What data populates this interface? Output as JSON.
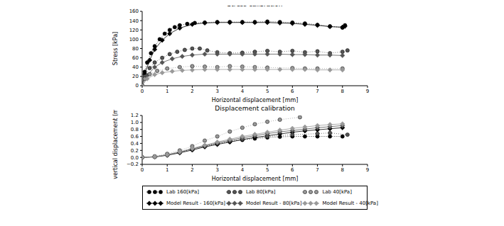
{
  "chart_data": [
    {
      "type": "line",
      "title": "Stress calibration",
      "x_label": "Horizontal displacement [mm]",
      "y_label": "Stress [kPa]",
      "xlim": [
        0,
        9
      ],
      "xticks": [
        0,
        1,
        2,
        3,
        4,
        5,
        6,
        7,
        8,
        9
      ],
      "ylim": [
        0,
        160
      ],
      "yticks": [
        0,
        20,
        40,
        60,
        80,
        100,
        120,
        140,
        160
      ],
      "grid": false,
      "legend": "bottom",
      "series": [
        {
          "name": "Lab 160[kPa]",
          "color": "#000000",
          "marker": "circle",
          "line_style": "dotted",
          "x": [
            0,
            0.1,
            0.2,
            0.35,
            0.5,
            0.7,
            0.9,
            1.1,
            1.3,
            1.5,
            1.8,
            2.1,
            2.5,
            3,
            3.5,
            4,
            4.5,
            5,
            5.5,
            6,
            6.5,
            7,
            7.5,
            8,
            8.1
          ],
          "values": [
            0,
            30,
            50,
            70,
            85,
            100,
            112,
            120,
            126,
            130,
            133,
            135,
            136,
            137,
            137,
            137,
            137,
            138,
            137,
            136,
            134,
            131,
            128,
            125,
            130
          ]
        },
        {
          "name": "Model Result - 160[kPa]",
          "color": "#000000",
          "marker": "diamond",
          "line_style": "solid",
          "x": [
            0,
            0.1,
            0.3,
            0.5,
            0.8,
            1.1,
            1.5,
            2,
            2.5,
            3,
            3.5,
            4,
            4.5,
            5,
            5.5,
            6,
            6.5,
            7,
            7.5,
            8,
            8.1
          ],
          "values": [
            0,
            25,
            55,
            78,
            98,
            112,
            124,
            132,
            135,
            136,
            136,
            136,
            136,
            136,
            135,
            134,
            132,
            130,
            127,
            126,
            128
          ]
        },
        {
          "name": "Lab 80[kPa]",
          "color": "#555555",
          "marker": "circle",
          "line_style": "dotted",
          "x": [
            0,
            0.1,
            0.3,
            0.5,
            0.8,
            1.1,
            1.4,
            1.7,
            2,
            2.3,
            2.6,
            3,
            3.5,
            4,
            4.5,
            5,
            5.5,
            6,
            6.5,
            7,
            7.5,
            8,
            8.2
          ],
          "values": [
            0,
            20,
            38,
            50,
            60,
            68,
            73,
            77,
            80,
            80,
            76,
            72,
            70,
            71,
            73,
            75,
            73,
            75,
            72,
            74,
            70,
            73,
            76
          ]
        },
        {
          "name": "Model Result - 80[kPa]",
          "color": "#555555",
          "marker": "diamond",
          "line_style": "solid",
          "x": [
            0,
            0.2,
            0.5,
            0.8,
            1.2,
            1.6,
            2,
            2.5,
            3,
            3.5,
            4,
            4.5,
            5,
            5.5,
            6,
            6.5,
            7,
            7.5,
            8
          ],
          "values": [
            0,
            22,
            40,
            50,
            58,
            63,
            66,
            68,
            68,
            68,
            68,
            68,
            68,
            68,
            67,
            67,
            66,
            66,
            65
          ]
        },
        {
          "name": "Lab 40[kPa]",
          "color": "#999999",
          "marker": "circle",
          "line_style": "dotted",
          "x": [
            0,
            0.1,
            0.3,
            0.6,
            1,
            1.5,
            2,
            2.5,
            3,
            3.5,
            4,
            4.5,
            5,
            6,
            6.5,
            7,
            8
          ],
          "values": [
            0,
            15,
            25,
            32,
            37,
            40,
            42,
            41,
            40,
            42,
            41,
            40,
            39,
            38,
            37,
            37,
            37
          ]
        },
        {
          "name": "Model Result - 40[kPa]",
          "color": "#999999",
          "marker": "diamond",
          "line_style": "solid",
          "x": [
            0,
            0.2,
            0.5,
            0.8,
            1.2,
            1.6,
            2,
            2.5,
            3,
            3.5,
            4,
            4.5,
            5,
            5.5,
            6,
            6.5,
            7,
            7.5,
            8
          ],
          "values": [
            0,
            15,
            24,
            28,
            31,
            33,
            34,
            35,
            35,
            35,
            35,
            35,
            35,
            35,
            35,
            35,
            34,
            34,
            34
          ]
        }
      ]
    },
    {
      "type": "line",
      "title": "Displacement calibration",
      "x_label": "Horizontal displacement [mm]",
      "y_label": "vertical displacement (mm)",
      "xlim": [
        0,
        9
      ],
      "xticks": [
        0,
        1,
        2,
        3,
        4,
        5,
        6,
        7,
        8,
        9
      ],
      "ylim": [
        -0.2,
        1.2
      ],
      "yticks": [
        {
          "value": -0.2,
          "label": "−0.2"
        },
        {
          "value": 0,
          "label": "0.0"
        },
        0.2,
        0.4,
        0.6,
        0.8,
        {
          "value": 1,
          "label": "1.0"
        },
        1.2
      ],
      "grid": false,
      "legend": "bottom",
      "series": [
        {
          "name": "Lab 160[kPa]",
          "color": "#000000",
          "marker": "circle",
          "line_style": "dotted",
          "x": [
            0,
            0.5,
            1,
            1.5,
            2,
            2.5,
            3,
            3.5,
            4,
            4.5,
            5,
            5.5,
            6,
            6.5,
            7,
            7.5,
            8
          ],
          "values": [
            0,
            0.02,
            0.08,
            0.15,
            0.24,
            0.32,
            0.39,
            0.45,
            0.5,
            0.54,
            0.57,
            0.59,
            0.6,
            0.6,
            0.6,
            0.6,
            0.6
          ]
        },
        {
          "name": "Model Result - 160[kPa]",
          "color": "#000000",
          "marker": "diamond",
          "line_style": "solid",
          "x": [
            0,
            0.5,
            1,
            1.5,
            2,
            2.5,
            3,
            3.5,
            4,
            4.5,
            5,
            5.5,
            6,
            6.5,
            7,
            7.5,
            8
          ],
          "values": [
            0,
            0.01,
            0.06,
            0.13,
            0.21,
            0.3,
            0.37,
            0.44,
            0.51,
            0.57,
            0.62,
            0.67,
            0.72,
            0.76,
            0.79,
            0.82,
            0.85
          ]
        },
        {
          "name": "Lab 80[kPa]",
          "color": "#555555",
          "marker": "circle",
          "line_style": "dotted",
          "x": [
            0,
            0.5,
            1,
            1.5,
            2,
            2.5,
            3,
            3.5,
            4,
            5,
            6,
            7,
            7.5,
            8.2
          ],
          "values": [
            0,
            0.02,
            0.07,
            0.14,
            0.24,
            0.33,
            0.41,
            0.47,
            0.52,
            0.6,
            0.65,
            0.68,
            0.7,
            0.65
          ]
        },
        {
          "name": "Model Result - 80[kPa]",
          "color": "#555555",
          "marker": "diamond",
          "line_style": "solid",
          "x": [
            0,
            0.5,
            1,
            1.5,
            2,
            2.5,
            3,
            3.5,
            4,
            4.5,
            5,
            5.5,
            6,
            6.5,
            7,
            7.5,
            8
          ],
          "values": [
            0,
            0.02,
            0.07,
            0.15,
            0.24,
            0.33,
            0.41,
            0.49,
            0.56,
            0.62,
            0.68,
            0.73,
            0.77,
            0.81,
            0.85,
            0.88,
            0.91
          ]
        },
        {
          "name": "Lab 40[kPa]",
          "color": "#999999",
          "marker": "circle",
          "line_style": "dotted",
          "x": [
            0,
            0.5,
            1,
            1.5,
            2,
            2.5,
            3,
            3.5,
            4,
            4.5,
            5,
            5.5,
            6.3
          ],
          "values": [
            0,
            0.03,
            0.1,
            0.2,
            0.32,
            0.48,
            0.6,
            0.74,
            0.85,
            0.95,
            1.02,
            1.08,
            1.15
          ]
        },
        {
          "name": "Model Result - 40[kPa]",
          "color": "#999999",
          "marker": "diamond",
          "line_style": "solid",
          "x": [
            0,
            0.5,
            1,
            1.5,
            2,
            2.5,
            3,
            3.5,
            4,
            4.5,
            5,
            5.5,
            6,
            6.5,
            7,
            7.5,
            8
          ],
          "values": [
            0,
            0.02,
            0.08,
            0.16,
            0.26,
            0.35,
            0.44,
            0.52,
            0.6,
            0.66,
            0.72,
            0.78,
            0.83,
            0.87,
            0.91,
            0.94,
            0.96
          ]
        }
      ]
    }
  ]
}
